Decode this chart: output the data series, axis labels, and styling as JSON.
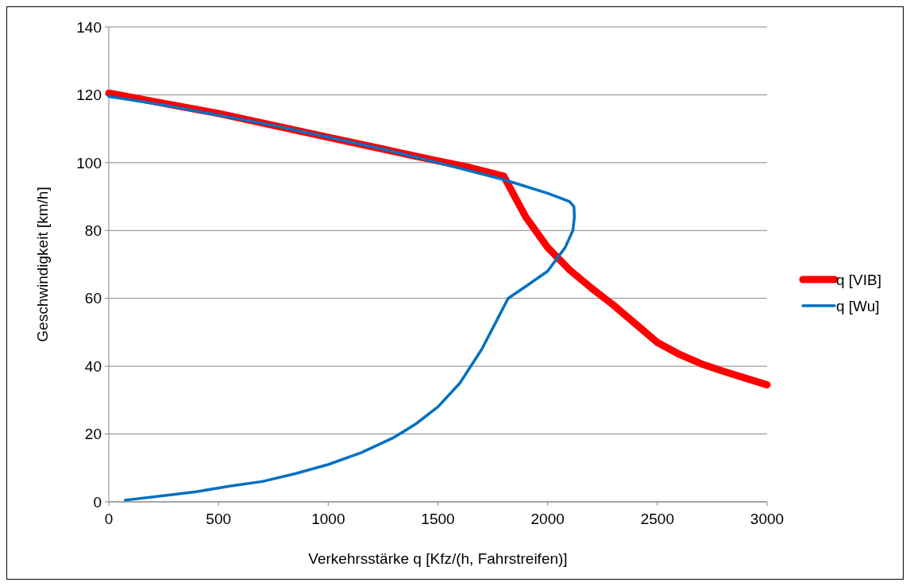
{
  "chart_data": {
    "type": "line",
    "xlabel": "Verkehrsstärke q [Kfz/(h, Fahrstreifen)]",
    "ylabel": "Geschwindigkeit [km/h]",
    "xlim": [
      0,
      3000
    ],
    "xticks": [
      0,
      500,
      1000,
      1500,
      2000,
      2500,
      3000
    ],
    "ylim": [
      0,
      140
    ],
    "yticks": [
      0,
      20,
      40,
      60,
      80,
      100,
      120,
      140
    ],
    "grid": "y",
    "legend": "right",
    "series": [
      {
        "name": "q [VIB]",
        "color": "#ff0000",
        "x": [
          0,
          250,
          500,
          750,
          1000,
          1250,
          1500,
          1650,
          1800,
          1850,
          1900,
          2000,
          2100,
          2200,
          2300,
          2400,
          2500,
          2600,
          2700,
          2800,
          2900,
          3000
        ],
        "values": [
          120.5,
          117.5,
          114.5,
          111,
          107.5,
          104,
          100.5,
          98.5,
          96,
          90,
          84,
          75,
          68.4,
          63,
          58,
          52.5,
          47,
          43.5,
          40.7,
          38.5,
          36.5,
          34.5
        ]
      },
      {
        "name": "q [Wu]",
        "color": "#0070c0",
        "x": [
          0,
          250,
          500,
          750,
          1000,
          1250,
          1500,
          1650,
          1800,
          1900,
          2000,
          2060,
          2100,
          2120,
          2122,
          2115,
          2080,
          2000,
          1900,
          1820,
          1780,
          1700,
          1600,
          1500,
          1400,
          1300,
          1150,
          1000,
          850,
          700,
          550,
          400,
          250,
          75
        ],
        "values": [
          119.5,
          117,
          114,
          111,
          107.5,
          104,
          100,
          97.5,
          95,
          93,
          91,
          89.5,
          88.5,
          87,
          84,
          80,
          75,
          68,
          63.5,
          60,
          55,
          45,
          35,
          28,
          23,
          19,
          14.5,
          11,
          8.3,
          6,
          4.6,
          3,
          1.8,
          0.5
        ]
      }
    ]
  }
}
